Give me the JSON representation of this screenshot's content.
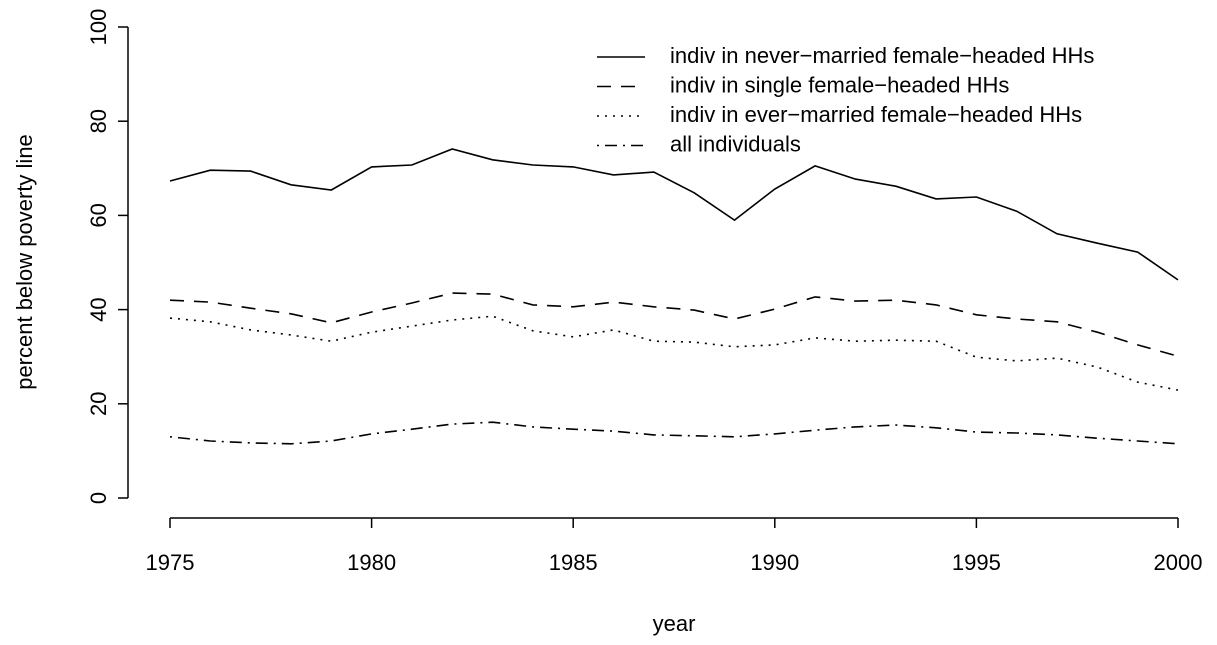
{
  "chart_data": {
    "type": "line",
    "xlabel": "year",
    "ylabel": "percent below poverty line",
    "x": [
      1975,
      1976,
      1977,
      1978,
      1979,
      1980,
      1981,
      1982,
      1983,
      1984,
      1985,
      1986,
      1987,
      1988,
      1989,
      1990,
      1991,
      1992,
      1993,
      1994,
      1995,
      1996,
      1997,
      1998,
      1999,
      2000
    ],
    "series": [
      {
        "name": "indiv in never−married female−headed HHs",
        "color": "#000000",
        "linestyle": "solid",
        "values": [
          67.3,
          69.6,
          69.4,
          66.5,
          65.4,
          70.3,
          70.7,
          74.1,
          71.8,
          70.7,
          70.3,
          68.6,
          69.2,
          64.8,
          59,
          65.6,
          70.5,
          67.7,
          66.2,
          63.5,
          63.9,
          60.9,
          56.1,
          54.1,
          52.2,
          46.3
        ]
      },
      {
        "name": "indiv in single female−headed HHs",
        "color": "#000000",
        "linestyle": "dashed",
        "values": [
          42.0,
          41.6,
          40.3,
          39.1,
          37.2,
          39.5,
          41.4,
          43.5,
          43.3,
          41.0,
          40.6,
          41.6,
          40.6,
          39.9,
          38.0,
          40.1,
          42.7,
          41.8,
          42.0,
          41.0,
          38.9,
          38.0,
          37.4,
          35.2,
          32.5,
          30.1
        ]
      },
      {
        "name": "indiv in ever−married female−headed HHs",
        "color": "#000000",
        "linestyle": "dotted",
        "values": [
          38.2,
          37.4,
          35.7,
          34.6,
          33.3,
          35.2,
          36.5,
          37.8,
          38.6,
          35.5,
          34.2,
          35.7,
          33.3,
          33.1,
          32.1,
          32.5,
          34.0,
          33.3,
          33.5,
          33.3,
          29.9,
          29.1,
          29.7,
          27.8,
          24.6,
          22.9
        ]
      },
      {
        "name": "all individuals",
        "color": "#000000",
        "linestyle": "dashdot",
        "values": [
          13.0,
          12.1,
          11.7,
          11.5,
          12.1,
          13.6,
          14.6,
          15.7,
          16.1,
          15.1,
          14.6,
          14.2,
          13.4,
          13.2,
          13.0,
          13.6,
          14.4,
          15.1,
          15.5,
          14.9,
          14.0,
          13.8,
          13.4,
          12.7,
          12.1,
          11.5
        ]
      }
    ],
    "xlim": [
      1975,
      2000
    ],
    "xticks": [
      1975,
      1980,
      1985,
      1990,
      1995,
      2000
    ],
    "ylim": [
      0,
      100
    ],
    "yticks": [
      0,
      20,
      40,
      60,
      80,
      100
    ],
    "legend": "top-right"
  }
}
